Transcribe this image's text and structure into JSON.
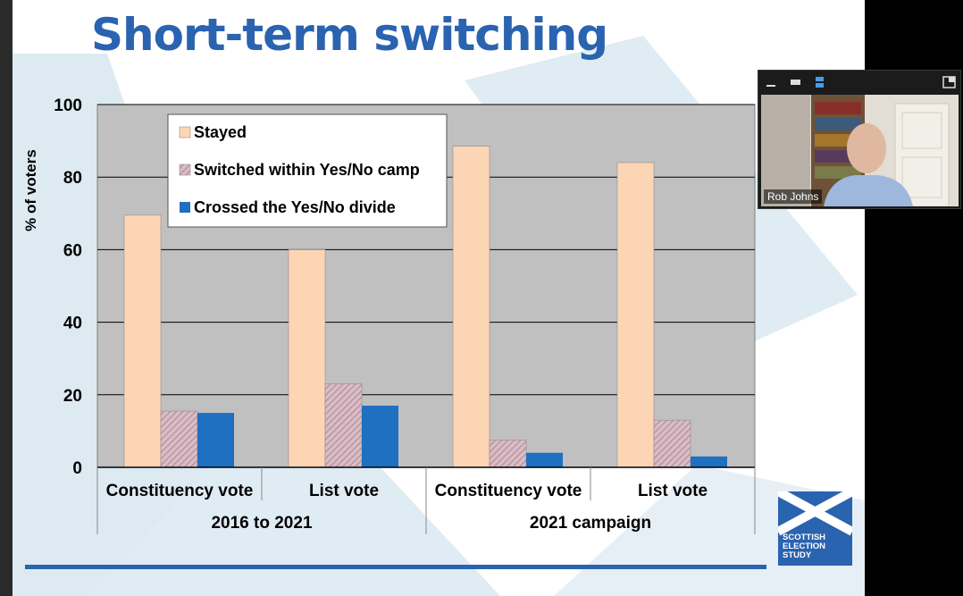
{
  "slide": {
    "title": "Short-term switching"
  },
  "chart_data": {
    "type": "bar",
    "ylabel": "% of voters",
    "ylim": [
      0,
      100
    ],
    "yticks": [
      0,
      20,
      40,
      60,
      80,
      100
    ],
    "categories": [
      "Constituency vote",
      "List vote",
      "Constituency vote",
      "List vote"
    ],
    "groups": [
      {
        "label": "2016 to 2021",
        "categories": [
          0,
          1
        ]
      },
      {
        "label": "2021 campaign",
        "categories": [
          2,
          3
        ]
      }
    ],
    "series": [
      {
        "name": "Stayed",
        "values": [
          69.5,
          60,
          88.5,
          84
        ],
        "color": "#fcd5b4"
      },
      {
        "name": "Switched within Yes/No camp",
        "values": [
          15.5,
          23,
          7.5,
          13
        ],
        "color": "#c7a4b0"
      },
      {
        "name": "Crossed the Yes/No divide",
        "values": [
          15,
          17,
          4,
          3
        ],
        "color": "#1f70c1"
      }
    ],
    "legend_position": "top-left",
    "grid": true
  },
  "logo": {
    "lines": [
      "SCOTTISH",
      "ELECTION",
      "STUDY"
    ]
  },
  "video": {
    "participant_name": "Rob Johns"
  },
  "colors": {
    "accent": "#2a63b0",
    "plot_bg": "#c0c0c0"
  }
}
